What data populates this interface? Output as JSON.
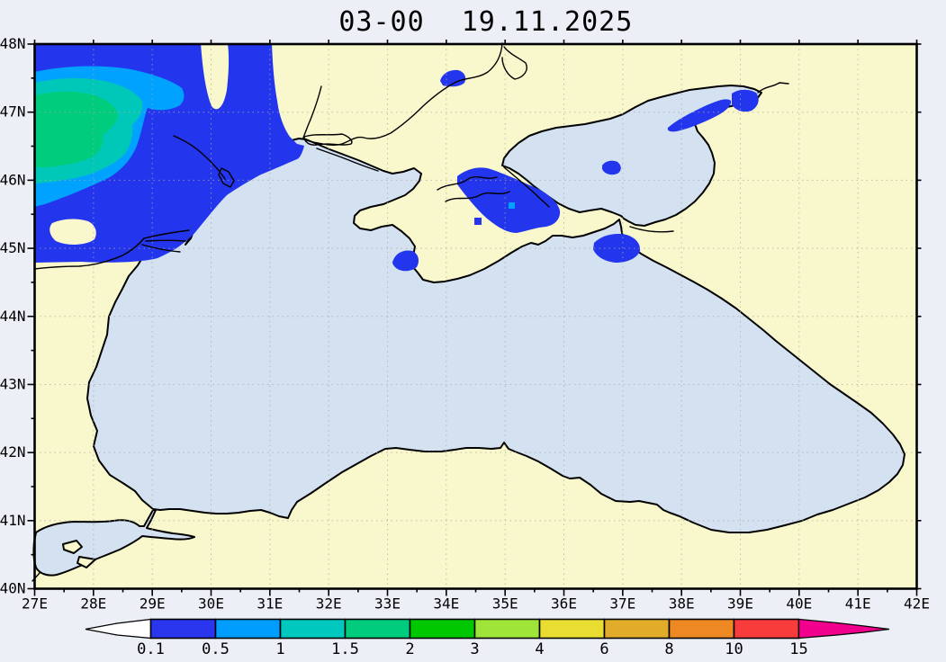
{
  "title": {
    "time": "03-00",
    "date": "19.11.2025"
  },
  "axes": {
    "x_labels": [
      "27E",
      "28E",
      "29E",
      "30E",
      "31E",
      "32E",
      "33E",
      "34E",
      "35E",
      "36E",
      "37E",
      "38E",
      "39E",
      "40E",
      "41E",
      "42E"
    ],
    "y_labels": [
      "40N",
      "41N",
      "42N",
      "43N",
      "44N",
      "45N",
      "46N",
      "47N",
      "48N"
    ]
  },
  "colorbar": {
    "tick_labels": [
      "0.1",
      "0.5",
      "1",
      "1.5",
      "2",
      "3",
      "4",
      "6",
      "8",
      "10",
      "15"
    ],
    "segment_colors": [
      "#2a35ee",
      "#009dff",
      "#00c8be",
      "#00cc7d",
      "#00c800",
      "#9fe438",
      "#e8dd30",
      "#e0ac2a",
      "#ee8822",
      "#f83c3c"
    ],
    "below_min_arrow_color": "#ffffff",
    "above_max_arrow_color": "#f0008c"
  },
  "map_colors": {
    "background": "#edeff7",
    "land": "#f9f8cc",
    "sea": "#d3e1f1",
    "coastline": "#000000",
    "grid": "#b0a89e",
    "frame": "#000000",
    "precip_level_1": "#2336ee",
    "precip_level_2": "#00a2ff",
    "precip_level_3": "#00c8b8",
    "precip_level_4": "#00cc7d"
  }
}
